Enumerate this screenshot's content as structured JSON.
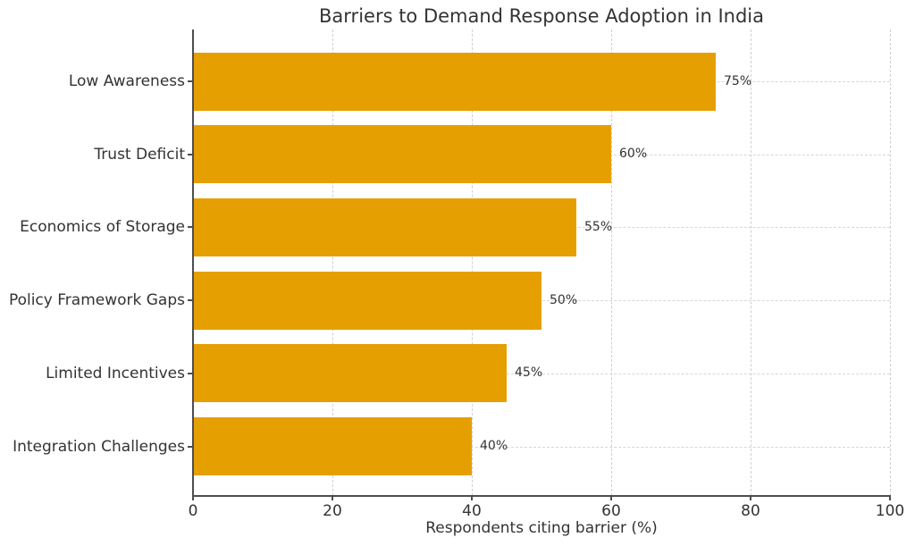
{
  "chart_data": {
    "type": "bar",
    "orientation": "horizontal",
    "title": "Barriers to Demand Response Adoption in India",
    "categories": [
      "Low Awareness",
      "Trust Deficit",
      "Economics of Storage",
      "Policy Framework Gaps",
      "Limited Incentives",
      "Integration Challenges"
    ],
    "values": [
      75,
      60,
      55,
      50,
      45,
      40
    ],
    "value_labels": [
      "75%",
      "60%",
      "55%",
      "50%",
      "45%",
      "40%"
    ],
    "xlabel": "Respondents citing barrier (%)",
    "ylabel": "",
    "xlim": [
      0,
      100
    ],
    "x_ticks": [
      0,
      20,
      40,
      60,
      80,
      100
    ],
    "grid": "dashed-both-axes",
    "legend": "none",
    "colors": {
      "bar": "#E69F00",
      "text": "#333333",
      "spine": "#4d4d4d",
      "grid": "#cfcfcf",
      "background": "#ffffff"
    }
  }
}
